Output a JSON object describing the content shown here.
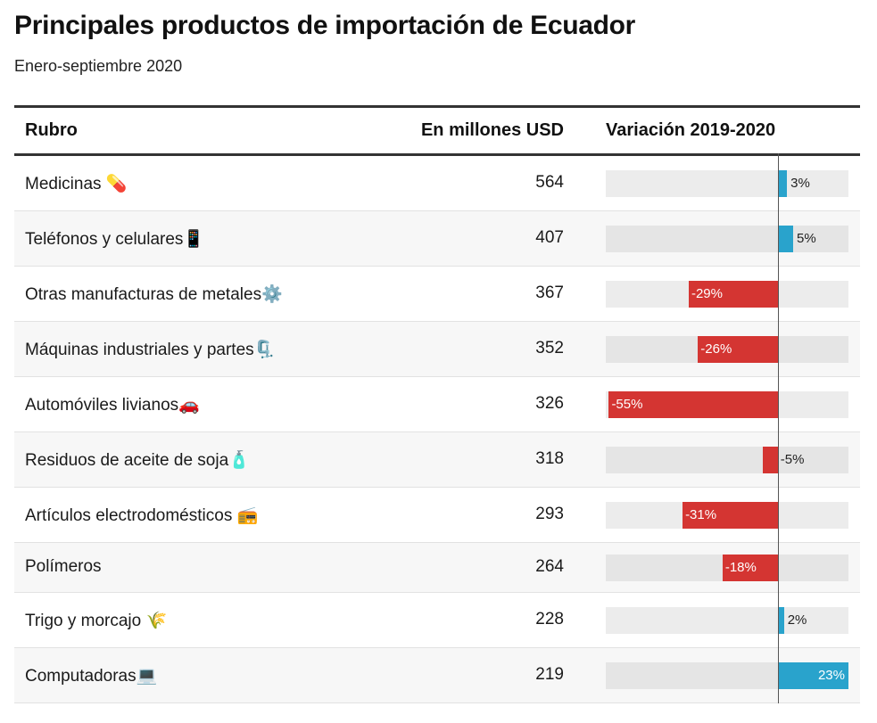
{
  "title": "Principales productos de importación de Ecuador",
  "subtitle": "Enero-septiembre 2020",
  "headers": {
    "rubro": "Rubro",
    "value": "En millones USD",
    "variation": "Variación 2019-2020"
  },
  "colors": {
    "positive": "#29a3cc",
    "negative": "#d43532",
    "track": "#ececec",
    "zero_line": "#555555"
  },
  "chart_data": {
    "type": "table",
    "title": "Principales productos de importación de Ecuador",
    "subtitle": "Enero-septiembre 2020",
    "columns": [
      "Rubro",
      "En millones USD",
      "Variación 2019-2020"
    ],
    "variation_domain": [
      -56,
      23
    ],
    "rows": [
      {
        "name": "Medicinas 💊",
        "icon": "pill-icon",
        "value": "564",
        "variation": 3,
        "label": "3%"
      },
      {
        "name": "Teléfonos y celulares📱",
        "icon": "mobile-phone-icon",
        "value": "407",
        "variation": 5,
        "label": "5%"
      },
      {
        "name": "Otras manufacturas de metales⚙️",
        "icon": "gear-icon",
        "value": "367",
        "variation": -29,
        "label": "-29%"
      },
      {
        "name": "Máquinas industriales y partes🗜️",
        "icon": "clamp-icon",
        "value": "352",
        "variation": -26,
        "label": "-26%"
      },
      {
        "name": "Automóviles livianos🚗",
        "icon": "car-icon",
        "value": "326",
        "variation": -55,
        "label": "-55%"
      },
      {
        "name": "Residuos de aceite de soja🧴",
        "icon": "lotion-bottle-icon",
        "value": "318",
        "variation": -5,
        "label": "-5%"
      },
      {
        "name": "Artículos electrodomésticos 📻",
        "icon": "radio-icon",
        "value": "293",
        "variation": -31,
        "label": "-31%"
      },
      {
        "name": "Polímeros",
        "icon": "",
        "value": "264",
        "variation": -18,
        "label": "-18%"
      },
      {
        "name": "Trigo y morcajo 🌾",
        "icon": "sheaf-icon",
        "value": "228",
        "variation": 2,
        "label": "2%"
      },
      {
        "name": "Computadoras💻",
        "icon": "laptop-icon",
        "value": "219",
        "variation": 23,
        "label": "23%"
      }
    ]
  }
}
